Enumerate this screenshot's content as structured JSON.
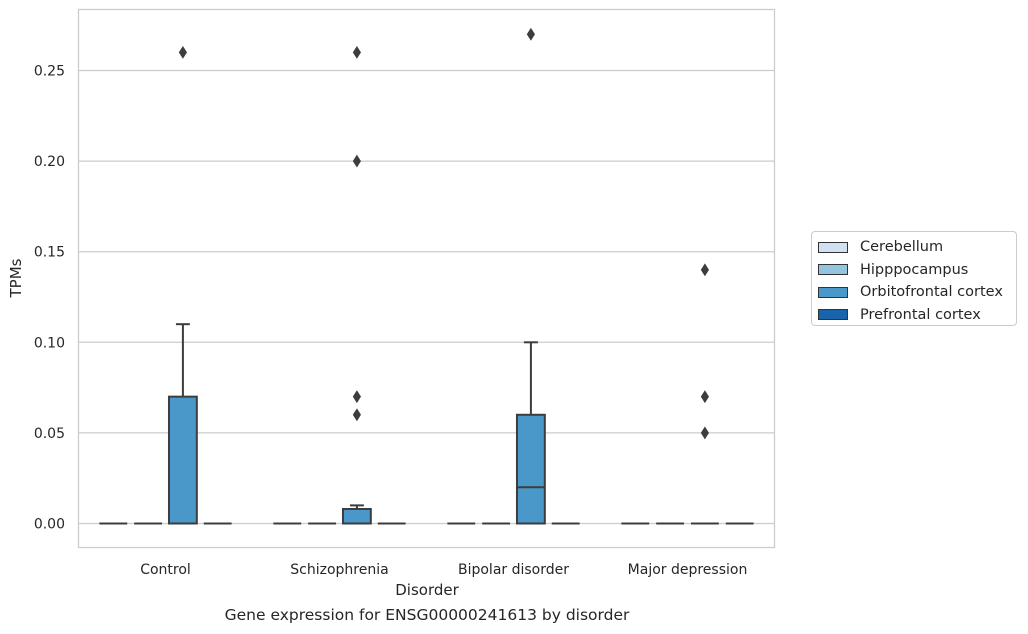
{
  "caption": "Gene expression for ENSG00000241613 by disorder",
  "chart_data": {
    "type": "box",
    "xlabel": "Disorder",
    "ylabel": "TPMs",
    "ylim": [
      -0.013,
      0.285
    ],
    "yticks": [
      "0.00",
      "0.05",
      "0.10",
      "0.15",
      "0.20",
      "0.25"
    ],
    "grid": true,
    "legend_position": "right",
    "categories": [
      "Control",
      "Schizophrenia",
      "Bipolar disorder",
      "Major depression"
    ],
    "series": [
      {
        "name": "Cerebellum",
        "color": "#d0e1f2",
        "boxes": [
          {
            "q1": 0,
            "median": 0,
            "q3": 0,
            "whisker_low": 0,
            "whisker_high": 0,
            "outliers": []
          },
          {
            "q1": 0,
            "median": 0,
            "q3": 0,
            "whisker_low": 0,
            "whisker_high": 0,
            "outliers": []
          },
          {
            "q1": 0,
            "median": 0,
            "q3": 0,
            "whisker_low": 0,
            "whisker_high": 0,
            "outliers": []
          },
          {
            "q1": 0,
            "median": 0,
            "q3": 0,
            "whisker_low": 0,
            "whisker_high": 0,
            "outliers": []
          }
        ]
      },
      {
        "name": "Hipppocampus",
        "color": "#94c4df",
        "boxes": [
          {
            "q1": 0,
            "median": 0,
            "q3": 0,
            "whisker_low": 0,
            "whisker_high": 0,
            "outliers": []
          },
          {
            "q1": 0,
            "median": 0,
            "q3": 0,
            "whisker_low": 0,
            "whisker_high": 0,
            "outliers": []
          },
          {
            "q1": 0,
            "median": 0,
            "q3": 0,
            "whisker_low": 0,
            "whisker_high": 0,
            "outliers": []
          },
          {
            "q1": 0,
            "median": 0,
            "q3": 0,
            "whisker_low": 0,
            "whisker_high": 0,
            "outliers": []
          }
        ]
      },
      {
        "name": "Orbitofrontal cortex",
        "color": "#4a98c9",
        "boxes": [
          {
            "q1": 0,
            "median": 0,
            "q3": 0.07,
            "whisker_low": 0,
            "whisker_high": 0.11,
            "outliers": [
              0.26
            ]
          },
          {
            "q1": 0,
            "median": 0,
            "q3": 0.008,
            "whisker_low": 0,
            "whisker_high": 0.01,
            "outliers": [
              0.06,
              0.07,
              0.2,
              0.26
            ]
          },
          {
            "q1": 0,
            "median": 0.02,
            "q3": 0.06,
            "whisker_low": 0,
            "whisker_high": 0.1,
            "outliers": [
              0.27
            ]
          },
          {
            "q1": 0,
            "median": 0,
            "q3": 0,
            "whisker_low": 0,
            "whisker_high": 0,
            "outliers": [
              0.05,
              0.07,
              0.14
            ]
          }
        ]
      },
      {
        "name": "Prefrontal cortex",
        "color": "#1764ab",
        "boxes": [
          {
            "q1": 0,
            "median": 0,
            "q3": 0,
            "whisker_low": 0,
            "whisker_high": 0,
            "outliers": []
          },
          {
            "q1": 0,
            "median": 0,
            "q3": 0,
            "whisker_low": 0,
            "whisker_high": 0,
            "outliers": []
          },
          {
            "q1": 0,
            "median": 0,
            "q3": 0,
            "whisker_low": 0,
            "whisker_high": 0,
            "outliers": []
          },
          {
            "q1": 0,
            "median": 0,
            "q3": 0,
            "whisker_low": 0,
            "whisker_high": 0,
            "outliers": []
          }
        ]
      }
    ]
  }
}
